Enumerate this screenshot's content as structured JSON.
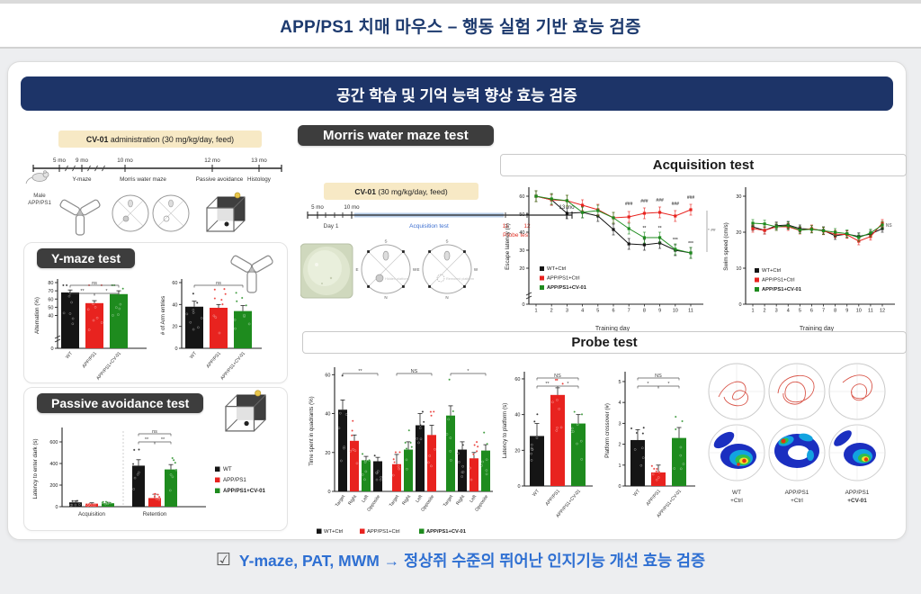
{
  "page": {
    "top_title": "APP/PS1 치매 마우스 – 행동 실험 기반 효능 검증",
    "banner_title": "공간 학습 및 기억 능력 향상 효능 검증",
    "conclusion": "Y-maze, PAT, MWM → 정상쥐 수준의 뛰어난 인지기능 개선 효능 검증",
    "checkbox_icon": "☑"
  },
  "colors": {
    "navy": "#1d3468",
    "black": "#151515",
    "red": "#e8231f",
    "green": "#1e8b1e",
    "beige": "#f7e9c5",
    "blue_text": "#2e6fd2",
    "acq_blue": "#3d6fd0",
    "probe_red": "#e03125",
    "label_dark": "#3d3d3d"
  },
  "sections": {
    "ymaze_label": "Y-maze test",
    "passive_label": "Passive avoidance test",
    "mwm_label": "Morris water maze test",
    "acquisition_title": "Acquisition test",
    "probe_title": "Probe test"
  },
  "admin_timeline": {
    "box_bold": "CV-01",
    "box_rest": " administration (30 mg/kg/day, feed)",
    "months": [
      "5 mo",
      "9 mo",
      "10 mo",
      "12 mo",
      "13 mo"
    ],
    "events": [
      "Y-maze",
      "Morris water maze",
      "Passive avoidance",
      "Histology"
    ],
    "subject": [
      "Male",
      "APP/PS1"
    ]
  },
  "mwm_timeline": {
    "box_bold": "CV-01",
    "box_rest": " (30 mg/kg/day, feed)",
    "months": [
      "5 mo",
      "10 mo",
      "13 mo"
    ],
    "day1": "Day 1",
    "acq_label": "Acquisition test",
    "probe_days": [
      "11",
      "12"
    ],
    "probe_label": "Probe test",
    "compass": [
      "N",
      "S",
      "E",
      "W"
    ],
    "platform_labels": [
      "Hidden platform",
      "Removed platform"
    ]
  },
  "tracks": {
    "labels": [
      [
        "WT",
        "+Ctrl"
      ],
      [
        "APP/PS1",
        "+Ctrl"
      ],
      [
        "APP/PS1",
        "+CV-01"
      ]
    ]
  },
  "chart_data": {
    "ymaze_alternation": {
      "type": "bar",
      "ylabel": "Alternation (%)",
      "ymax": 80,
      "yticks": [
        0,
        40,
        50,
        60,
        70,
        80
      ],
      "axis_break": true,
      "categories": [
        "WT",
        "APP/PS1",
        "APP/PS1+CV-01"
      ],
      "values": [
        68,
        55,
        66
      ],
      "errors": [
        3,
        3,
        4
      ],
      "sigs": [
        {
          "a": 0,
          "b": 2,
          "t": "ns",
          "lvl": 2
        },
        {
          "a": 0,
          "b": 1,
          "t": "**",
          "lvl": 1
        },
        {
          "a": 1,
          "b": 2,
          "t": "*",
          "lvl": 1
        }
      ]
    },
    "ymaze_entries": {
      "type": "bar",
      "ylabel": "# of Arm entries",
      "ymax": 60,
      "yticks": [
        0,
        20,
        40,
        60
      ],
      "categories": [
        "WT",
        "APP/PS1",
        "APP/PS1+CV-01"
      ],
      "values": [
        38,
        37,
        34
      ],
      "errors": [
        5,
        3,
        5
      ],
      "sigs": [
        {
          "a": 0,
          "b": 2,
          "t": "ns",
          "lvl": 2
        }
      ]
    },
    "passive_avoidance": {
      "type": "bar",
      "ylabel": "Latency to enter dark (s)",
      "ymax": 700,
      "yticks": [
        0,
        200,
        400,
        600
      ],
      "group_labels": [
        "Acquisition",
        "Retention"
      ],
      "legend_labels": [
        "WT",
        "APP/PS1",
        "APP/PS1+CV-01"
      ],
      "values": [
        40,
        28,
        32,
        380,
        80,
        345
      ],
      "errors": [
        12,
        8,
        8,
        55,
        35,
        45
      ],
      "sigs": [
        {
          "a": 3,
          "b": 5,
          "t": "ns",
          "lvl": 2
        },
        {
          "a": 3,
          "b": 4,
          "t": "**",
          "lvl": 1
        },
        {
          "a": 4,
          "b": 5,
          "t": "**",
          "lvl": 1
        }
      ]
    },
    "escape_latency": {
      "type": "line",
      "ylabel": "Escape latency (s)",
      "xlabel": "Training day",
      "x": [
        1,
        2,
        3,
        4,
        5,
        6,
        7,
        8,
        9,
        10,
        11
      ],
      "ymax": 64,
      "yticks": [
        0,
        20,
        30,
        40,
        50,
        60
      ],
      "axis_break": true,
      "series": [
        {
          "name": "WT+Ctrl",
          "color": "#151515",
          "err": 3,
          "values": [
            60,
            58,
            50.5,
            51,
            49,
            41.5,
            33.5,
            33,
            34,
            30,
            28.5
          ]
        },
        {
          "name": "APP/PS1+Ctrl",
          "color": "#e8231f",
          "err": 3,
          "values": [
            60,
            58,
            57.5,
            55,
            52.5,
            48,
            48.5,
            50.5,
            51,
            49,
            52.5
          ]
        },
        {
          "name": "APP/PS1+CV-01",
          "color": "#1e8b1e",
          "err": 3,
          "values": [
            60,
            58.5,
            57.5,
            51,
            52,
            48,
            42,
            37,
            37,
            30.5,
            28.5
          ]
        }
      ],
      "annotations": [
        {
          "x": 7,
          "y": 55,
          "t": "###"
        },
        {
          "x": 8,
          "y": 56.5,
          "t": "###"
        },
        {
          "x": 9,
          "y": 57,
          "t": "###"
        },
        {
          "x": 10,
          "y": 55,
          "t": "###"
        },
        {
          "x": 11,
          "y": 58.5,
          "t": "###"
        },
        {
          "x": 8,
          "y": 41.5,
          "t": "**"
        },
        {
          "x": 9,
          "y": 41.5,
          "t": "**"
        },
        {
          "x": 10,
          "y": 35,
          "t": "***"
        },
        {
          "x": 11,
          "y": 33,
          "t": "***"
        }
      ],
      "side": {
        "y1": 29,
        "y2": 52,
        "t": "* ##"
      }
    },
    "swim_speed": {
      "type": "line",
      "ylabel": "Swim speed (cm/s)",
      "xlabel": "Training day",
      "x": [
        1,
        2,
        3,
        4,
        5,
        6,
        7,
        8,
        9,
        10,
        11,
        12
      ],
      "ymax": 32,
      "yticks": [
        0,
        10,
        20,
        30
      ],
      "series": [
        {
          "name": "WT+Ctrl",
          "color": "#151515",
          "err": 1,
          "values": [
            21.5,
            20.5,
            21.8,
            22,
            21,
            20.8,
            20.5,
            19,
            19.5,
            18.8,
            19.5,
            21
          ]
        },
        {
          "name": "APP/PS1+Ctrl",
          "color": "#e8231f",
          "err": 1,
          "values": [
            21,
            20.5,
            21.5,
            21.5,
            20.5,
            21,
            20.3,
            19.5,
            19.3,
            17.5,
            18.8,
            22.5
          ]
        },
        {
          "name": "APP/PS1+CV-01",
          "color": "#1e8b1e",
          "err": 1,
          "values": [
            22.5,
            22.3,
            21.5,
            21.8,
            20.6,
            20.8,
            20.4,
            20,
            19.6,
            18.5,
            19.8,
            22
          ]
        }
      ],
      "annotations": [
        {
          "x": 12.55,
          "y": 21.5,
          "t": "NS",
          "c": "#888"
        }
      ]
    },
    "probe_quadrants": {
      "type": "bar",
      "ylabel": "Time spent in quadrants (%)",
      "ymax": 62,
      "yticks": [
        0,
        20,
        40,
        60
      ],
      "categories": [
        "Target",
        "Right",
        "Left",
        "Opposite",
        "Target",
        "Right",
        "Left",
        "Opposite",
        "Target",
        "Right",
        "Left",
        "Opposite"
      ],
      "values": [
        42,
        26,
        16,
        15.5,
        14,
        21.5,
        34,
        29,
        39,
        21.5,
        17,
        21
      ],
      "errors": [
        5,
        3,
        2,
        2,
        5,
        4,
        6,
        5,
        5,
        4,
        3,
        3
      ],
      "legend_labels": [
        "WT+Ctrl",
        "APP/PS1+Ctrl",
        "APP/PS1+CV-01"
      ],
      "sigs": [
        {
          "a": 0,
          "b": 3,
          "t": "**",
          "lvl": 2
        },
        {
          "a": 4,
          "b": 7,
          "t": "NS",
          "lvl": 2
        },
        {
          "a": 8,
          "b": 11,
          "t": "*",
          "lvl": 2
        }
      ]
    },
    "latency_to_platform": {
      "type": "bar",
      "ylabel": "Latency to platform (s)",
      "ymax": 62,
      "yticks": [
        0,
        20,
        40,
        60
      ],
      "categories": [
        "WT",
        "APP/PS1",
        "APP/PS1+CV-01"
      ],
      "values": [
        28,
        51,
        35
      ],
      "errors": [
        7,
        4,
        5
      ],
      "sigs": [
        {
          "a": 0,
          "b": 2,
          "t": "NS",
          "lvl": 2
        },
        {
          "a": 0,
          "b": 1,
          "t": "**",
          "lvl": 1
        },
        {
          "a": 1,
          "b": 2,
          "t": "*",
          "lvl": 1
        }
      ]
    },
    "platform_crossover": {
      "type": "bar",
      "ylabel": "Platform crossover (#)",
      "ymax": 5.3,
      "yticks": [
        0,
        1,
        2,
        3,
        4,
        5
      ],
      "categories": [
        "WT",
        "APP/PS1",
        "APP/PS1+CV-01"
      ],
      "values": [
        2.2,
        0.65,
        2.3
      ],
      "errors": [
        0.5,
        0.35,
        0.5
      ],
      "sigs": [
        {
          "a": 0,
          "b": 2,
          "t": "NS",
          "lvl": 2
        },
        {
          "a": 0,
          "b": 1,
          "t": "*",
          "lvl": 1
        },
        {
          "a": 1,
          "b": 2,
          "t": "*",
          "lvl": 1
        }
      ]
    }
  }
}
